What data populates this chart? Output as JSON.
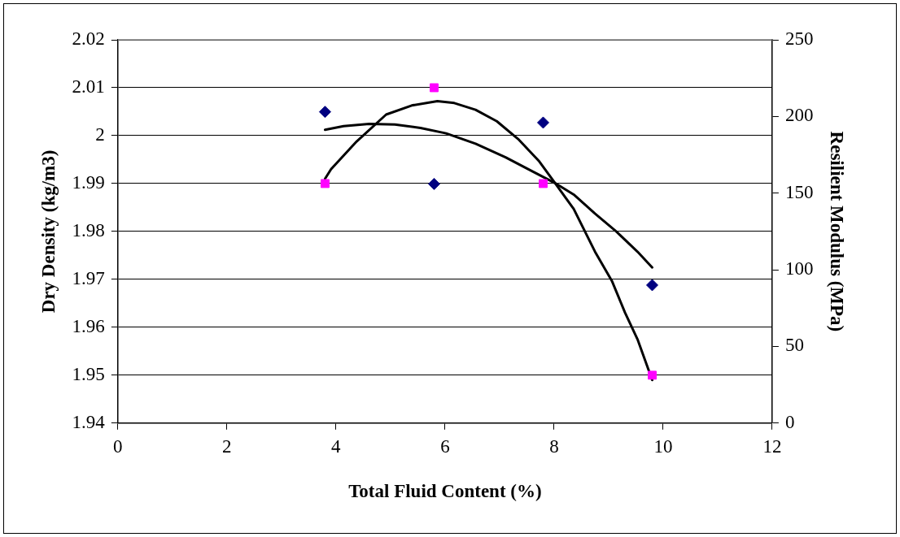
{
  "chart_data": {
    "type": "scatter",
    "xlabel": "Total Fluid Content (%)",
    "ylabel": "Dry Density (kg/m3)",
    "y2label": "Resilient Modulus (MPa)",
    "xlim": [
      0,
      12
    ],
    "xticks": [
      0,
      2,
      4,
      6,
      8,
      10,
      12
    ],
    "ylim": [
      1.94,
      2.02
    ],
    "yticks": [
      1.94,
      1.95,
      1.96,
      1.97,
      1.98,
      1.99,
      2,
      2.01,
      2.02
    ],
    "y2lim": [
      0,
      250
    ],
    "y2ticks": [
      0,
      50,
      100,
      150,
      200,
      250
    ],
    "grid": "y",
    "legend": false,
    "series": [
      {
        "color": "#ff00ff",
        "marker": "square",
        "x": [
          3.8,
          5.8,
          7.8,
          9.8
        ],
        "values": [
          1.99,
          2.01,
          1.99,
          1.95
        ]
      },
      {
        "color": "#000080",
        "marker": "diamond",
        "axis": "y2",
        "x": [
          3.8,
          5.8,
          7.8,
          9.8
        ],
        "values": [
          203,
          156,
          196,
          90
        ]
      },
      {
        "type": "line",
        "color": "#000000",
        "marker": "none",
        "line_style": "solid",
        "x": [
          3.8,
          3.91,
          4.38,
          4.92,
          5.39,
          5.86,
          6.17,
          6.56,
          6.95,
          7.34,
          7.73,
          8.01,
          8.36,
          8.75,
          9.06,
          9.3,
          9.53,
          9.8
        ],
        "values": [
          1.991,
          1.993,
          1.9988,
          2.0044,
          2.0063,
          2.0072,
          2.0068,
          2.0054,
          2.003,
          1.9993,
          1.9946,
          1.9902,
          1.9847,
          1.9758,
          1.9697,
          1.9631,
          1.9575,
          1.949
        ]
      },
      {
        "type": "line",
        "color": "#000000",
        "marker": "none",
        "line_style": "solid",
        "axis": "y2",
        "x": [
          3.8,
          4.14,
          4.61,
          5.08,
          5.55,
          6.02,
          6.56,
          7.11,
          7.58,
          8.01,
          8.36,
          8.75,
          9.14,
          9.53,
          9.8
        ],
        "values": [
          191.3,
          193.7,
          195.1,
          194.8,
          192.5,
          189,
          182.2,
          173.4,
          164.6,
          156.7,
          149.1,
          136.7,
          125,
          111.8,
          101.5
        ]
      }
    ]
  }
}
